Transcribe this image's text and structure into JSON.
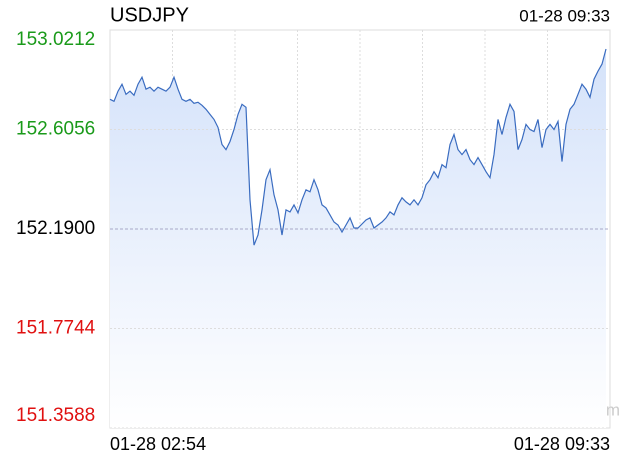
{
  "chart_data": {
    "type": "line",
    "title": "USDJPY",
    "timestamp": "01-28 09:33",
    "watermark": "sina.com",
    "xlabels": [
      "01-28 02:54",
      "01-28 09:33"
    ],
    "ylim": [
      151.3588,
      153.0212
    ],
    "yticks": [
      153.0212,
      152.6056,
      {
        "value": 152.19,
        "label": "152.1900"
      },
      151.7744,
      151.3588
    ],
    "ytick_colors": [
      "#1a9a1a",
      "#1a9a1a",
      "#000000",
      "#e01010",
      "#e01010"
    ],
    "grid": true,
    "color": "#3a6cc0",
    "fill_color": "#d4e2fa",
    "values": [
      152.7318,
      152.7234,
      152.7654,
      152.7948,
      152.7528,
      152.7654,
      152.7486,
      152.7948,
      152.8242,
      152.7738,
      152.7822,
      152.7654,
      152.7822,
      152.7738,
      152.7654,
      152.7822,
      152.8242,
      152.7738,
      152.7318,
      152.7234,
      152.7318,
      152.715,
      152.7192,
      152.7066,
      152.6898,
      152.6688,
      152.6478,
      152.6142,
      152.5428,
      152.5218,
      152.5554,
      152.6058,
      152.6688,
      152.7108,
      152.6982,
      152.3118,
      152.1228,
      152.1648,
      152.2698,
      152.3958,
      152.4378,
      152.3328,
      152.2698,
      152.1648,
      152.2698,
      152.2614,
      152.2908,
      152.2572,
      152.3118,
      152.3538,
      152.3454,
      152.3958,
      152.3538,
      152.2908,
      152.2782,
      152.2488,
      152.2194,
      152.2068,
      152.1774,
      152.2068,
      152.2362,
      152.1942,
      152.1942,
      152.211,
      152.2278,
      152.2362,
      152.1942,
      152.2068,
      152.2194,
      152.2362,
      152.2614,
      152.2488,
      152.2908,
      152.3202,
      152.3034,
      152.2908,
      152.3118,
      152.2908,
      152.3202,
      152.3748,
      152.3958,
      152.4294,
      152.4042,
      152.4588,
      152.4462,
      152.5428,
      152.5848,
      152.5218,
      152.5008,
      152.5218,
      152.4798,
      152.4588,
      152.4882,
      152.4588,
      152.4294,
      152.4042,
      152.5008,
      152.6478,
      152.5848,
      152.6562,
      152.7108,
      152.6814,
      152.5218,
      152.5638,
      152.6268,
      152.6058,
      152.5974,
      152.6478,
      152.5302,
      152.6058,
      152.6268,
      152.6058,
      152.6394,
      152.4714,
      152.6268,
      152.6898,
      152.7108,
      152.7528,
      152.7948,
      152.7738,
      152.7402,
      152.8158,
      152.8494,
      152.8788,
      152.9418
    ]
  }
}
